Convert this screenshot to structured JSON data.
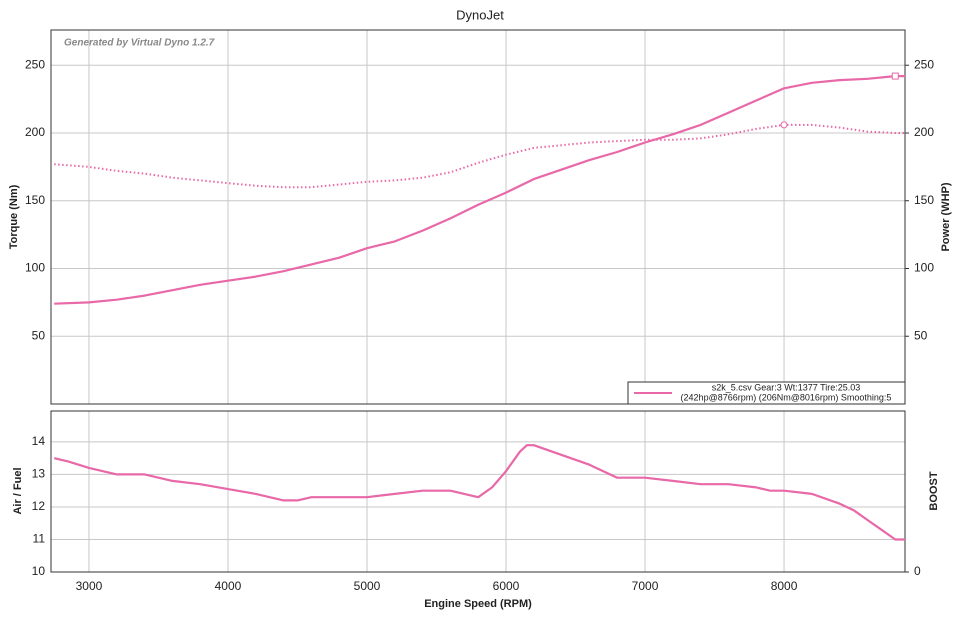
{
  "chart_data": [
    {
      "type": "line",
      "title": "DynoJet",
      "annotation": "Generated by Virtual Dyno 1.2.7",
      "ylabel": "Torque (Nm)",
      "y2label": "Power (WHP)",
      "xlim": [
        2727,
        8870
      ],
      "xticks": [
        3000,
        4000,
        5000,
        6000,
        7000,
        8000
      ],
      "ylim": [
        0,
        276
      ],
      "yticks": [
        50,
        100,
        150,
        200,
        250
      ],
      "y2lim": [
        0,
        276
      ],
      "y2ticks": [
        50,
        100,
        150,
        200,
        250
      ],
      "grid": true,
      "x": [
        2750,
        3000,
        3200,
        3400,
        3600,
        3800,
        4000,
        4200,
        4400,
        4600,
        4800,
        5000,
        5200,
        5400,
        5600,
        5800,
        6000,
        6200,
        6400,
        6600,
        6800,
        7000,
        7200,
        7400,
        7600,
        7800,
        8000,
        8200,
        8400,
        8600,
        8800,
        8870
      ],
      "series": [
        {
          "color": "#e868a8",
          "style": "solid",
          "axis": "y2",
          "marker": "square",
          "values": [
            74,
            75,
            77,
            80,
            84,
            88,
            91,
            94,
            98,
            103,
            108,
            115,
            120,
            128,
            137,
            147,
            156,
            166,
            173,
            180,
            186,
            193,
            199,
            206,
            215,
            224,
            233,
            237,
            239,
            240,
            242,
            242
          ]
        },
        {
          "color": "#e868a8",
          "style": "dotted",
          "marker": "circle",
          "values": [
            177,
            175,
            172,
            170,
            167,
            165,
            163,
            161,
            160,
            160,
            162,
            164,
            165,
            167,
            171,
            178,
            184,
            189,
            191,
            193,
            194,
            195,
            195,
            196,
            199,
            203,
            206,
            206,
            204,
            201,
            200,
            200
          ]
        }
      ],
      "legend": {
        "position": "lower right",
        "lines": [
          "s2k_5.csv Gear:3 Wt:1377 Tire:25.03",
          "(242hp@8766rpm) (206Nm@8016rpm) Smoothing:5"
        ]
      }
    },
    {
      "type": "line",
      "ylabel": "Air / Fuel",
      "y2label": "BOOST",
      "xlabel": "Engine Speed (RPM)",
      "xlim": [
        2727,
        8870
      ],
      "xticks": [
        3000,
        4000,
        5000,
        6000,
        7000,
        8000
      ],
      "ylim": [
        10,
        14.95
      ],
      "yticks": [
        10,
        11,
        12,
        13,
        14
      ],
      "y2lim": [
        0,
        10
      ],
      "y2ticks": [
        0
      ],
      "grid": true,
      "x": [
        2750,
        2850,
        3000,
        3200,
        3400,
        3600,
        3800,
        4000,
        4200,
        4400,
        4500,
        4600,
        4800,
        5000,
        5200,
        5400,
        5600,
        5800,
        5900,
        6000,
        6100,
        6150,
        6200,
        6400,
        6600,
        6800,
        7000,
        7200,
        7400,
        7600,
        7800,
        7900,
        8000,
        8200,
        8400,
        8500,
        8600,
        8700,
        8800,
        8870
      ],
      "series": [
        {
          "color": "#e868a8",
          "style": "solid",
          "values": [
            13.5,
            13.4,
            13.2,
            13.0,
            13.0,
            12.8,
            12.7,
            12.55,
            12.4,
            12.2,
            12.2,
            12.3,
            12.3,
            12.3,
            12.4,
            12.5,
            12.5,
            12.3,
            12.6,
            13.1,
            13.7,
            13.9,
            13.9,
            13.6,
            13.3,
            12.9,
            12.9,
            12.8,
            12.7,
            12.7,
            12.6,
            12.5,
            12.5,
            12.4,
            12.1,
            11.9,
            11.6,
            11.3,
            11.0,
            11.0
          ]
        }
      ]
    }
  ]
}
